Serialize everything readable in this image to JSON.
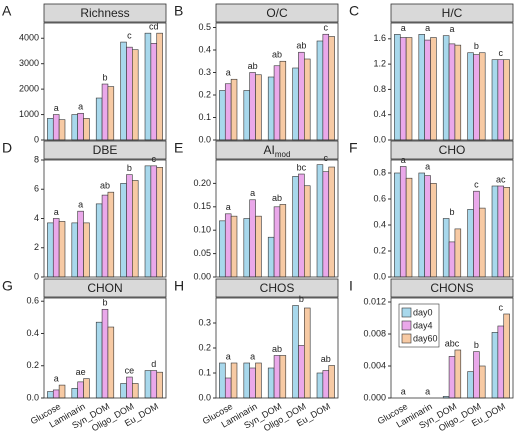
{
  "chart_data": [
    {
      "panel": "A",
      "type": "bar",
      "title": "Richness",
      "letters": [
        "a",
        "a",
        "b",
        "c",
        "cd"
      ],
      "series": [
        {
          "color": "#a8d8ec",
          "values": [
            850,
            1000,
            1650,
            3850,
            4200
          ]
        },
        {
          "color": "#eaa8ea",
          "values": [
            1000,
            1050,
            2200,
            3650,
            3800
          ]
        },
        {
          "color": "#f7caa4",
          "values": [
            800,
            850,
            2100,
            3550,
            4200
          ]
        }
      ],
      "ylim": [
        0,
        4600
      ],
      "yticks": [
        0,
        1000,
        2000,
        3000,
        4000
      ]
    },
    {
      "panel": "B",
      "type": "bar",
      "title": "O/C",
      "letters": [
        "a",
        "ab",
        "ab",
        "ab",
        "c"
      ],
      "series": [
        {
          "color": "#a8d8ec",
          "values": [
            0.22,
            0.22,
            0.28,
            0.32,
            0.44
          ]
        },
        {
          "color": "#eaa8ea",
          "values": [
            0.25,
            0.3,
            0.33,
            0.39,
            0.47
          ]
        },
        {
          "color": "#f7caa4",
          "values": [
            0.27,
            0.29,
            0.35,
            0.36,
            0.46
          ]
        }
      ],
      "ylim": [
        0,
        0.52
      ],
      "yticks": [
        {
          "value": 0,
          "label": "0.0"
        },
        0.1,
        0.2,
        0.3,
        0.4,
        0.5
      ]
    },
    {
      "panel": "C",
      "type": "bar",
      "title": "H/C",
      "letters": [
        "a",
        "a",
        "a",
        "b",
        "c"
      ],
      "series": [
        {
          "color": "#a8d8ec",
          "values": [
            1.67,
            1.67,
            1.65,
            1.38,
            1.27
          ]
        },
        {
          "color": "#eaa8ea",
          "values": [
            1.62,
            1.58,
            1.52,
            1.35,
            1.27
          ]
        },
        {
          "color": "#f7caa4",
          "values": [
            1.62,
            1.62,
            1.5,
            1.38,
            1.27
          ]
        }
      ],
      "ylim": [
        0,
        1.85
      ],
      "yticks": [
        {
          "value": 0,
          "label": "0.0"
        },
        0.4,
        0.8,
        1.2,
        1.6
      ]
    },
    {
      "panel": "D",
      "type": "bar",
      "title": "DBE",
      "letters": [
        "a",
        "a",
        "ab",
        "b",
        "c"
      ],
      "series": [
        {
          "color": "#a8d8ec",
          "values": [
            3.7,
            3.7,
            5.0,
            6.4,
            7.6
          ]
        },
        {
          "color": "#eaa8ea",
          "values": [
            4.0,
            4.5,
            5.6,
            7.0,
            7.6
          ]
        },
        {
          "color": "#f7caa4",
          "values": [
            3.8,
            3.7,
            5.8,
            6.6,
            7.5
          ]
        }
      ],
      "ylim": [
        0,
        8
      ],
      "yticks": [
        0,
        2,
        4,
        6,
        8
      ]
    },
    {
      "panel": "E",
      "type": "bar",
      "title": "AI",
      "title_sub": "mod",
      "letters": [
        "a",
        "a",
        "ab",
        "bc",
        "c"
      ],
      "series": [
        {
          "color": "#a8d8ec",
          "values": [
            0.12,
            0.125,
            0.085,
            0.215,
            0.24
          ]
        },
        {
          "color": "#eaa8ea",
          "values": [
            0.135,
            0.165,
            0.15,
            0.22,
            0.225
          ]
        },
        {
          "color": "#f7caa4",
          "values": [
            0.13,
            0.13,
            0.155,
            0.195,
            0.235
          ]
        }
      ],
      "ylim": [
        0,
        0.25
      ],
      "yticks": [
        {
          "value": 0,
          "label": "0.00"
        },
        {
          "value": 0.05,
          "label": "0.05"
        },
        {
          "value": 0.1,
          "label": "0.10"
        },
        {
          "value": 0.15,
          "label": "0.15"
        },
        {
          "value": 0.2,
          "label": "0.20"
        }
      ]
    },
    {
      "panel": "F",
      "type": "bar",
      "title": "CHO",
      "letters": [
        "a",
        "a",
        "b",
        "c",
        "ac"
      ],
      "series": [
        {
          "color": "#a8d8ec",
          "values": [
            0.8,
            0.8,
            0.45,
            0.52,
            0.7
          ]
        },
        {
          "color": "#eaa8ea",
          "values": [
            0.85,
            0.78,
            0.27,
            0.66,
            0.7
          ]
        },
        {
          "color": "#f7caa4",
          "values": [
            0.76,
            0.72,
            0.37,
            0.53,
            0.69
          ]
        }
      ],
      "ylim": [
        0,
        0.9
      ],
      "yticks": [
        {
          "value": 0,
          "label": "0.0"
        },
        0.2,
        0.4,
        0.6,
        0.8
      ]
    },
    {
      "panel": "G",
      "type": "bar",
      "title": "CHON",
      "letters": [
        "a",
        "ae",
        "b",
        "ce",
        "d"
      ],
      "categories": [
        "Glucose",
        "Laminarin",
        "Syn_DOM",
        "Oligo_DOM",
        "Eu_DOM"
      ],
      "series": [
        {
          "color": "#a8d8ec",
          "values": [
            0.04,
            0.06,
            0.47,
            0.09,
            0.17
          ]
        },
        {
          "color": "#eaa8ea",
          "values": [
            0.05,
            0.1,
            0.55,
            0.13,
            0.17
          ]
        },
        {
          "color": "#f7caa4",
          "values": [
            0.08,
            0.12,
            0.44,
            0.09,
            0.16
          ]
        }
      ],
      "ylim": [
        0,
        0.62
      ],
      "yticks": [
        {
          "value": 0,
          "label": "0.0"
        },
        0.2,
        0.4,
        0.6
      ]
    },
    {
      "panel": "H",
      "type": "bar",
      "title": "CHOS",
      "letters": [
        "a",
        "a",
        "ab",
        "b",
        "ab"
      ],
      "categories": [
        "Glucose",
        "Laminarin",
        "Syn_DOM",
        "Oligo_DOM",
        "Eu_DOM"
      ],
      "series": [
        {
          "color": "#a8d8ec",
          "values": [
            0.14,
            0.14,
            0.12,
            0.37,
            0.1
          ]
        },
        {
          "color": "#eaa8ea",
          "values": [
            0.08,
            0.12,
            0.17,
            0.21,
            0.11
          ]
        },
        {
          "color": "#f7caa4",
          "values": [
            0.14,
            0.14,
            0.17,
            0.36,
            0.13
          ]
        }
      ],
      "ylim": [
        0,
        0.4
      ],
      "yticks": [
        {
          "value": 0,
          "label": "0.0"
        },
        0.1,
        0.2,
        0.3
      ]
    },
    {
      "panel": "I",
      "type": "bar",
      "title": "CHONS",
      "letters": [
        "a",
        "a",
        "abc",
        "b",
        "c"
      ],
      "categories": [
        "Glucose",
        "Laminarin",
        "Syn_DOM",
        "Oligo_DOM",
        "Eu_DOM"
      ],
      "legend": "upper-left",
      "series": [
        {
          "name": "day0",
          "color": "#a8d8ec",
          "values": [
            0,
            0,
            0.0002,
            0.0033,
            0.0082
          ]
        },
        {
          "name": "day4",
          "color": "#eaa8ea",
          "values": [
            0,
            0,
            0.0052,
            0.0058,
            0.009
          ]
        },
        {
          "name": "day60",
          "color": "#f7caa4",
          "values": [
            0,
            0,
            0.006,
            0.004,
            0.0105
          ]
        }
      ],
      "ylim": [
        0,
        0.0125
      ],
      "yticks": [
        {
          "value": 0,
          "label": "0.000"
        },
        {
          "value": 0.004,
          "label": "0.004"
        },
        {
          "value": 0.008,
          "label": "0.008"
        },
        {
          "value": 0.012,
          "label": "0.012"
        }
      ]
    }
  ]
}
